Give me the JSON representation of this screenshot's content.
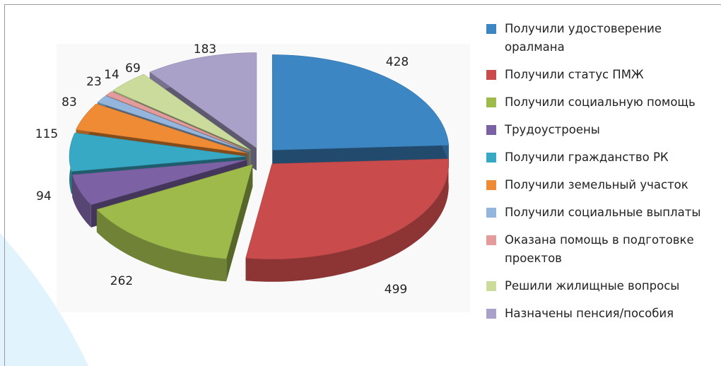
{
  "chart_data": {
    "type": "pie3d",
    "categories": [
      "Получили удостоверение оралмана",
      "Получили статус ПМЖ",
      "Получили социальную помощь",
      "Трудоустроены",
      "Получили гражданство РК",
      "Получили земельный участок",
      "Получили социальные выплаты",
      "Оказана помощь в подготовке проектов",
      "Решили жилищные вопросы",
      "Назначены пенсия/пособия"
    ],
    "values": [
      428,
      499,
      262,
      94,
      115,
      83,
      23,
      14,
      69,
      183
    ],
    "colors": [
      "#3c86c4",
      "#c94b4b",
      "#9eba4b",
      "#7c62a4",
      "#38a9c5",
      "#ee8b34",
      "#94b5dc",
      "#e39c9b",
      "#cadb9c",
      "#aaa1c9"
    ],
    "legend": "right"
  }
}
